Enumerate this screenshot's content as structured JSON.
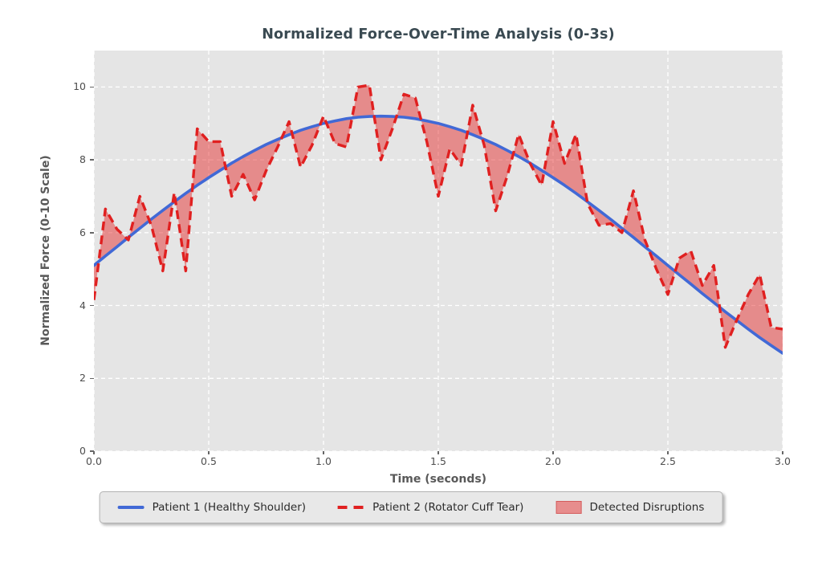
{
  "title": "Normalized Force-Over-Time Analysis (0-3s)",
  "axes": {
    "xlabel": "Time (seconds)",
    "ylabel": "Normalized Force (0-10 Scale)",
    "x_ticks": [
      "0.0",
      "0.5",
      "1.0",
      "1.5",
      "2.0",
      "2.5",
      "3.0"
    ],
    "y_ticks": [
      "0",
      "2",
      "4",
      "6",
      "8",
      "10"
    ]
  },
  "legend": {
    "items": [
      {
        "label": "Patient 1 (Healthy Shoulder)",
        "swatch": "solid-line",
        "color": "#4169d6"
      },
      {
        "label": "Patient 2 (Rotator Cuff Tear)",
        "swatch": "dashed-line",
        "color": "#e02020"
      },
      {
        "label": "Detected Disruptions",
        "swatch": "filled-patch",
        "color": "rgba(230,50,50,0.5)"
      }
    ]
  },
  "colors": {
    "figure_bg": "#ffffff",
    "plot_bg": "#e5e5e5",
    "grid": "#ffffff",
    "title": "#3a4a52",
    "axis_label": "#595959",
    "tick_label": "#4d4d4d",
    "legend_bg": "#e8e8e8"
  },
  "chart_data": {
    "type": "line",
    "title": "Normalized Force-Over-Time Analysis (0-3s)",
    "xlabel": "Time (seconds)",
    "ylabel": "Normalized Force (0-10 Scale)",
    "xlim": [
      0,
      3
    ],
    "ylim": [
      0,
      11
    ],
    "grid": true,
    "legend_position": "bottom-center",
    "x": [
      0.0,
      0.05,
      0.1,
      0.15,
      0.2,
      0.25,
      0.3,
      0.35,
      0.4,
      0.45,
      0.5,
      0.55,
      0.6,
      0.65,
      0.7,
      0.75,
      0.8,
      0.85,
      0.9,
      0.95,
      1.0,
      1.05,
      1.1,
      1.15,
      1.2,
      1.25,
      1.3,
      1.35,
      1.4,
      1.45,
      1.5,
      1.55,
      1.6,
      1.65,
      1.7,
      1.75,
      1.8,
      1.85,
      1.9,
      1.95,
      2.0,
      2.05,
      2.1,
      2.15,
      2.2,
      2.25,
      2.3,
      2.35,
      2.4,
      2.45,
      2.5,
      2.55,
      2.6,
      2.65,
      2.7,
      2.75,
      2.8,
      2.85,
      2.9,
      2.95,
      3.0
    ],
    "series": [
      {
        "name": "Patient 1 (Healthy Shoulder)",
        "style": "solid",
        "color": "#4169d6",
        "values": [
          5.1,
          5.36,
          5.61,
          5.87,
          6.12,
          6.37,
          6.61,
          6.85,
          7.08,
          7.3,
          7.51,
          7.71,
          7.91,
          8.09,
          8.26,
          8.42,
          8.56,
          8.69,
          8.81,
          8.91,
          9.0,
          9.07,
          9.13,
          9.17,
          9.19,
          9.2,
          9.19,
          9.17,
          9.13,
          9.07,
          9.0,
          8.91,
          8.81,
          8.69,
          8.56,
          8.42,
          8.26,
          8.09,
          7.91,
          7.71,
          7.51,
          7.3,
          7.08,
          6.85,
          6.61,
          6.37,
          6.12,
          5.87,
          5.61,
          5.36,
          5.1,
          4.84,
          4.59,
          4.33,
          4.08,
          3.83,
          3.59,
          3.35,
          3.12,
          2.9,
          2.69
        ]
      },
      {
        "name": "Patient 2 (Rotator Cuff Tear)",
        "style": "dashed",
        "color": "#e02020",
        "values": [
          4.15,
          6.65,
          6.1,
          5.8,
          7.0,
          6.2,
          4.95,
          7.1,
          4.95,
          8.85,
          8.5,
          8.5,
          7.0,
          7.6,
          6.9,
          7.7,
          8.35,
          9.05,
          7.8,
          8.4,
          9.2,
          8.45,
          8.35,
          10.0,
          10.05,
          8.0,
          8.85,
          9.8,
          9.7,
          8.5,
          7.0,
          8.3,
          7.85,
          9.5,
          8.4,
          6.6,
          7.55,
          8.7,
          7.9,
          7.3,
          9.05,
          7.9,
          8.7,
          6.8,
          6.2,
          6.25,
          6.0,
          7.15,
          5.8,
          5.0,
          4.3,
          5.3,
          5.5,
          4.55,
          5.1,
          2.85,
          3.6,
          4.3,
          4.85,
          3.4,
          3.35
        ]
      }
    ],
    "fill_between": {
      "label": "Detected Disruptions",
      "between": [
        "Patient 2 (Rotator Cuff Tear)",
        "Patient 1 (Healthy Shoulder)"
      ],
      "color": "rgba(230,50,50,0.5)"
    }
  }
}
